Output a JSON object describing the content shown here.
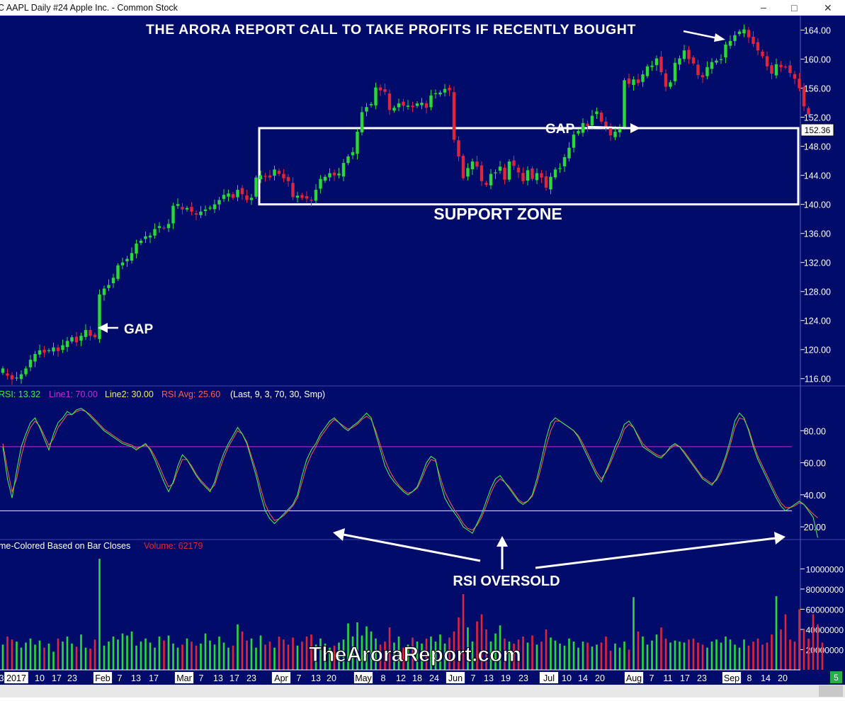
{
  "window": {
    "title": "C AAPL  Daily  #24  Apple Inc. - Common Stock",
    "minimize_glyph": "–",
    "maximize_glyph": "□",
    "close_glyph": "✕"
  },
  "colors": {
    "background": "#010c6a",
    "up_candle": "#2bd83a",
    "down_candle": "#e0243a",
    "rsi_line": "#44e84c",
    "rsi_avg_line": "#ff5c50",
    "line1": "#c02cd6",
    "line2": "#f0f0f0",
    "annotation": "#ffffff",
    "axis_text": "#ffffff",
    "price_tag_bg": "#ffffff",
    "price_tag_text": "#000000",
    "status_green": "#23b04a"
  },
  "price_panel": {
    "y_ticks": [
      "164.00",
      "160.00",
      "156.00",
      "152.00",
      "148.00",
      "144.00",
      "140.00",
      "136.00",
      "132.00",
      "128.00",
      "124.00",
      "120.00",
      "116.00"
    ],
    "last_price_tag": "152.36"
  },
  "rsi_panel": {
    "legend": {
      "rsi": "RSI: 13.32",
      "line1": "Line1: 70.00",
      "line2": "Line2: 30.00",
      "avg": "RSI Avg: 25.60",
      "params": "(Last, 9, 3, 70, 30, Smp)"
    },
    "y_ticks": [
      "80.00",
      "60.00",
      "40.00",
      "20.00"
    ]
  },
  "volume_panel": {
    "legend": {
      "label": "me-Colored Based on Bar Closes",
      "volume": "Volume: 62179"
    },
    "y_ticks": [
      "10000000",
      "80000000",
      "60000000",
      "40000000",
      "20000000"
    ]
  },
  "x_axis": {
    "labels": [
      "3",
      "2017",
      "10",
      "17",
      "23",
      "Feb",
      "7",
      "13",
      "17",
      "Mar",
      "7",
      "13",
      "17",
      "23",
      "Apr",
      "7",
      "13",
      "20",
      "May",
      "8",
      "12",
      "18",
      "24",
      "Jun",
      "7",
      "13",
      "19",
      "23",
      "Jul",
      "10",
      "14",
      "20",
      "Aug",
      "7",
      "11",
      "17",
      "23",
      "Sep",
      "8",
      "14",
      "20"
    ],
    "boxed": [
      "2017",
      "Feb",
      "Mar",
      "Apr",
      "May",
      "Jun",
      "Jul",
      "Aug",
      "Sep"
    ],
    "status_badge": "5"
  },
  "annotations": {
    "headline": "THE ARORA REPORT CALL TO TAKE PROFITS IF RECENTLY BOUGHT",
    "gap_left": "GAP",
    "gap_right": "GAP",
    "support_zone": "SUPPORT ZONE",
    "rsi_oversold": "RSI OVERSOLD",
    "watermark": "TheAroraReport.com"
  },
  "chart_data": [
    {
      "type": "candlestick",
      "title": "C AAPL  Daily  #24  Apple Inc. - Common Stock",
      "ylim": [
        115,
        166
      ],
      "x_start": 0,
      "x_step": 5.92,
      "support_zone": [
        140,
        150.5
      ],
      "closes": [
        116.8,
        116.4,
        115.9,
        116.1,
        116.6,
        117.4,
        118.6,
        119.4,
        119.9,
        119.6,
        119.9,
        120.3,
        119.8,
        120.6,
        121.2,
        121.7,
        121.0,
        121.9,
        122.7,
        121.9,
        121.7,
        127.6,
        128.4,
        128.9,
        129.9,
        131.6,
        132.0,
        132.5,
        133.3,
        134.6,
        135.0,
        135.6,
        135.7,
        136.6,
        137.0,
        136.8,
        137.3,
        139.8,
        139.8,
        139.3,
        139.5,
        139.0,
        138.6,
        139.0,
        139.3,
        139.5,
        140.0,
        140.6,
        141.3,
        141.5,
        140.9,
        142.0,
        141.4,
        140.6,
        140.9,
        143.7,
        144.0,
        143.9,
        143.7,
        144.8,
        144.2,
        143.6,
        143.2,
        141.0,
        141.2,
        140.9,
        140.8,
        140.5,
        142.0,
        143.5,
        143.8,
        144.3,
        144.0,
        144.0,
        145.7,
        146.6,
        147.2,
        150.0,
        152.7,
        153.4,
        153.8,
        156.1,
        155.7,
        155.5,
        153.0,
        153.3,
        153.9,
        153.6,
        153.6,
        153.4,
        153.9,
        154.0,
        153.3,
        155.0,
        155.3,
        155.4,
        155.9,
        155.7,
        148.9,
        146.6,
        143.6,
        145.0,
        145.9,
        145.2,
        143.2,
        142.7,
        144.2,
        144.4,
        145.2,
        143.4,
        145.9,
        145.3,
        144.4,
        143.2,
        144.7,
        143.5,
        144.3,
        143.7,
        142.3,
        143.8,
        144.8,
        145.0,
        146.5,
        147.8,
        149.6,
        150.1,
        151.2,
        150.8,
        152.2,
        152.8,
        151.4,
        150.6,
        149.5,
        150.0,
        150.5,
        157.1,
        156.6,
        157.2,
        156.7,
        157.9,
        159.0,
        159.1,
        160.1,
        158.2,
        156.2,
        156.8,
        159.5,
        160.1,
        161.2,
        160.0,
        159.4,
        157.8,
        157.5,
        158.9,
        159.6,
        159.8,
        160.0,
        162.0,
        162.5,
        163.3,
        163.8,
        164.1,
        163.0,
        162.1,
        161.2,
        160.4,
        159.0,
        158.0,
        159.3,
        158.9,
        158.9,
        158.1,
        157.3,
        156.0,
        153.5,
        152.4
      ],
      "first_up": [
        1,
        0,
        0,
        1,
        1,
        1,
        1,
        1,
        1,
        0,
        1,
        1,
        0,
        1,
        1,
        1,
        0,
        1,
        1,
        0,
        0,
        1,
        1,
        1,
        1,
        1,
        1,
        1,
        1,
        1,
        1,
        1,
        1,
        1,
        1,
        0,
        1,
        1,
        1,
        0,
        1,
        0,
        0,
        1,
        1,
        1,
        1,
        1,
        1,
        1,
        0,
        1,
        0,
        0,
        1,
        1,
        1,
        0,
        0,
        1,
        0,
        0,
        0,
        0,
        1,
        0,
        0,
        0,
        1,
        1,
        1,
        1,
        0,
        1,
        1,
        1,
        1,
        1,
        1,
        1,
        1,
        1,
        0,
        0,
        0,
        1,
        1,
        0,
        1,
        0,
        1,
        1,
        0,
        1,
        1,
        1,
        1,
        0,
        0,
        0,
        0,
        1,
        1,
        0,
        0,
        0,
        1,
        1,
        1,
        0,
        1,
        0,
        0,
        0,
        1,
        0,
        1,
        0,
        0,
        1,
        1,
        1,
        1,
        1,
        1,
        1,
        1,
        0,
        1,
        1,
        0,
        0,
        0,
        1,
        1,
        1,
        0,
        1,
        0,
        1,
        1,
        1,
        1,
        0,
        0,
        1,
        1,
        1,
        1,
        0,
        0,
        0,
        0,
        1,
        1,
        1,
        1,
        1,
        1,
        1,
        1,
        1,
        0,
        0,
        0,
        0,
        0,
        0,
        1,
        0,
        0,
        0,
        0,
        0,
        0,
        0
      ]
    },
    {
      "type": "line",
      "title": "RSI",
      "ylim": [
        5,
        100
      ],
      "hlines": [
        70,
        30
      ],
      "series": [
        {
          "name": "RSI",
          "x_start": 0,
          "x_step": 5.92,
          "values": [
            70,
            50,
            38,
            55,
            70,
            78,
            85,
            88,
            82,
            75,
            68,
            78,
            85,
            88,
            92,
            90,
            93,
            94,
            92,
            89,
            86,
            83,
            80,
            78,
            76,
            74,
            72,
            71,
            70,
            68,
            70,
            72,
            68,
            62,
            55,
            48,
            42,
            48,
            58,
            65,
            62,
            57,
            52,
            48,
            45,
            42,
            48,
            58,
            66,
            72,
            77,
            82,
            78,
            72,
            62,
            52,
            40,
            30,
            25,
            22,
            25,
            28,
            31,
            34,
            40,
            52,
            62,
            68,
            72,
            78,
            82,
            86,
            88,
            85,
            82,
            80,
            83,
            85,
            88,
            91,
            88,
            78,
            68,
            58,
            52,
            48,
            45,
            42,
            40,
            42,
            45,
            52,
            60,
            64,
            62,
            48,
            38,
            33,
            29,
            25,
            20,
            18,
            16,
            22,
            28,
            36,
            44,
            50,
            52,
            48,
            44,
            40,
            36,
            34,
            36,
            40,
            50,
            62,
            75,
            85,
            88,
            86,
            84,
            82,
            80,
            76,
            70,
            64,
            58,
            52,
            48,
            55,
            62,
            70,
            76,
            84,
            86,
            82,
            76,
            70,
            68,
            66,
            64,
            63,
            66,
            70,
            72,
            70,
            66,
            62,
            58,
            54,
            50,
            48,
            46,
            50,
            56,
            64,
            74,
            86,
            91,
            88,
            80,
            70,
            62,
            56,
            50,
            44,
            38,
            33,
            30,
            32,
            34,
            36,
            34,
            30,
            26,
            13.32
          ]
        },
        {
          "name": "RSI Avg",
          "x_start": 0,
          "x_step": 5.92,
          "values": [
            72,
            56,
            42,
            50,
            64,
            75,
            82,
            86,
            83,
            77,
            71,
            75,
            82,
            86,
            90,
            90,
            92,
            93,
            92,
            90,
            87,
            84,
            81,
            79,
            77,
            75,
            73,
            72,
            71,
            69,
            70,
            71,
            69,
            64,
            58,
            51,
            45,
            47,
            55,
            62,
            62,
            58,
            53,
            49,
            46,
            43,
            46,
            55,
            63,
            70,
            75,
            80,
            78,
            73,
            64,
            55,
            44,
            34,
            28,
            24,
            25,
            27,
            30,
            33,
            38,
            48,
            58,
            65,
            70,
            76,
            80,
            84,
            87,
            85,
            83,
            81,
            82,
            84,
            87,
            89,
            87,
            80,
            71,
            62,
            55,
            50,
            46,
            43,
            41,
            42,
            44,
            50,
            57,
            62,
            61,
            51,
            42,
            36,
            31,
            27,
            22,
            19,
            18,
            21,
            26,
            33,
            41,
            47,
            50,
            48,
            45,
            41,
            37,
            35,
            36,
            39,
            47,
            58,
            70,
            80,
            86,
            86,
            84,
            82,
            80,
            77,
            72,
            66,
            60,
            54,
            50,
            54,
            60,
            67,
            73,
            81,
            84,
            82,
            77,
            72,
            69,
            67,
            65,
            64,
            66,
            69,
            71,
            70,
            67,
            63,
            59,
            55,
            51,
            49,
            47,
            49,
            54,
            62,
            71,
            82,
            88,
            87,
            81,
            72,
            64,
            58,
            52,
            46,
            40,
            35,
            32,
            32,
            33,
            35,
            34,
            31,
            28,
            25.6
          ]
        }
      ]
    },
    {
      "type": "bar",
      "title": "Volume",
      "ylim": [
        0,
        115000000
      ],
      "x_start": 0,
      "x_step": 5.92,
      "values": [
        25,
        33,
        30,
        28,
        22,
        27,
        31,
        25,
        29,
        22,
        26,
        18,
        31,
        28,
        33,
        26,
        23,
        35,
        22,
        21,
        30,
        110,
        24,
        28,
        33,
        30,
        36,
        34,
        38,
        24,
        28,
        31,
        27,
        22,
        33,
        29,
        34,
        26,
        22,
        25,
        31,
        28,
        24,
        26,
        36,
        29,
        25,
        33,
        27,
        22,
        24,
        45,
        38,
        29,
        31,
        22,
        34,
        25,
        28,
        22,
        33,
        30,
        25,
        32,
        24,
        28,
        33,
        35,
        25,
        31,
        26,
        22,
        24,
        27,
        30,
        46,
        33,
        47,
        34,
        43,
        38,
        31,
        25,
        28,
        42,
        27,
        33,
        22,
        25,
        32,
        28,
        26,
        31,
        33,
        28,
        35,
        26,
        32,
        38,
        52,
        75,
        42,
        28,
        48,
        55,
        40,
        28,
        36,
        44,
        31,
        28,
        26,
        30,
        33,
        27,
        34,
        25,
        28,
        40,
        32,
        29,
        26,
        24,
        31,
        28,
        22,
        28,
        27,
        23,
        25,
        27,
        33,
        19,
        26,
        22,
        28,
        20,
        72,
        38,
        33,
        25,
        29,
        35,
        42,
        31,
        27,
        29,
        28,
        27,
        30,
        31,
        27,
        25,
        22,
        28,
        30,
        27,
        33,
        30,
        25,
        22,
        30,
        24,
        28,
        31,
        25,
        27,
        35,
        73,
        40,
        55,
        30,
        28,
        60,
        40,
        31,
        55,
        45,
        27
      ]
    }
  ]
}
